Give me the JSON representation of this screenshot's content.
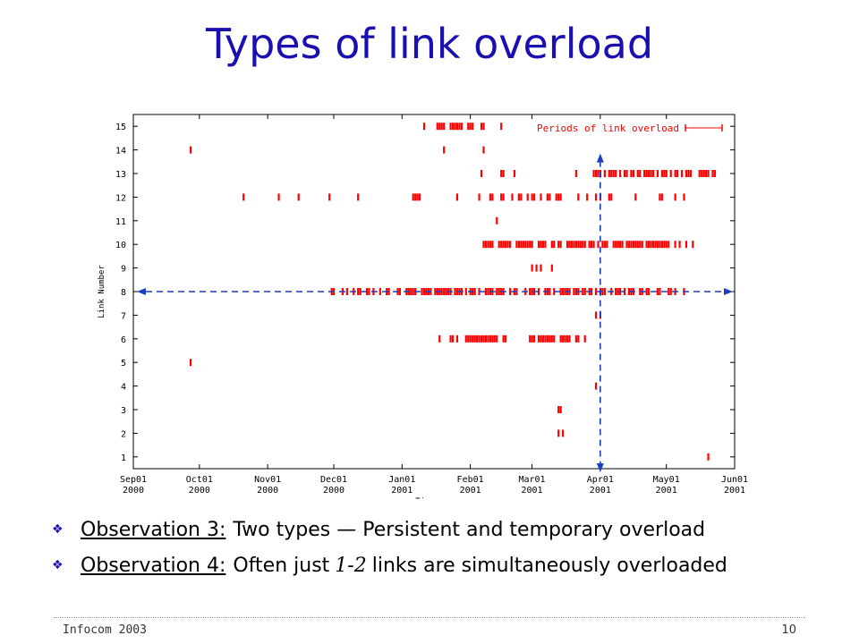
{
  "slide": {
    "title": "Types of link overload",
    "footer_left": "Infocom 2003",
    "page_number": "10"
  },
  "bullets": [
    {
      "label": "Observation 3:",
      "text": "Two types — Persistent and temporary overload"
    },
    {
      "label": "Observation 4:",
      "text_before": "Often just",
      "range": "1-2",
      "text_after": "links are simultaneously overloaded"
    }
  ],
  "chart_data": {
    "type": "scatter",
    "xlabel": "Time",
    "ylabel": "Link Number",
    "legend": {
      "label": "Periods of link overload",
      "position": "top-right"
    },
    "y_ticks": [
      1,
      2,
      3,
      4,
      5,
      6,
      7,
      8,
      9,
      10,
      11,
      12,
      13,
      14,
      15
    ],
    "ylim": [
      1,
      15
    ],
    "xlim": [
      "2000-09-01",
      "2001-06-01"
    ],
    "x_ticks": [
      {
        "date": "2000-09-01",
        "line1": "Sep01",
        "line2": "2000"
      },
      {
        "date": "2000-10-01",
        "line1": "Oct01",
        "line2": "2000"
      },
      {
        "date": "2000-11-01",
        "line1": "Nov01",
        "line2": "2000"
      },
      {
        "date": "2000-12-01",
        "line1": "Dec01",
        "line2": "2000"
      },
      {
        "date": "2001-01-01",
        "line1": "Jan01",
        "line2": "2001"
      },
      {
        "date": "2001-02-01",
        "line1": "Feb01",
        "line2": "2001"
      },
      {
        "date": "2001-03-01",
        "line1": "Mar01",
        "line2": "2001"
      },
      {
        "date": "2001-04-01",
        "line1": "Apr01",
        "line2": "2001"
      },
      {
        "date": "2001-05-01",
        "line1": "May01",
        "line2": "2001"
      },
      {
        "date": "2001-06-01",
        "line1": "Jun01",
        "line2": "2001"
      }
    ],
    "grid": false,
    "marker_color": "#ff0000",
    "arrow_color": "#1a3fc0",
    "series": [
      {
        "link": 15,
        "dates": [
          "2001-01-11",
          "2001-01-17",
          "2001-01-18",
          "2001-01-19",
          "2001-01-20",
          "2001-01-23",
          "2001-01-24",
          "2001-01-25",
          "2001-01-26",
          "2001-01-27",
          "2001-01-28",
          "2001-01-31",
          "2001-02-01",
          "2001-02-02",
          "2001-02-06",
          "2001-02-07",
          "2001-02-15"
        ]
      },
      {
        "link": 14,
        "dates": [
          "2000-09-27",
          "2001-01-20",
          "2001-02-07"
        ]
      },
      {
        "link": 13,
        "dates": [
          "2001-02-06",
          "2001-02-15",
          "2001-02-16",
          "2001-02-21",
          "2001-03-21",
          "2001-03-29",
          "2001-03-30",
          "2001-03-31",
          "2001-04-01",
          "2001-04-03",
          "2001-04-05",
          "2001-04-06",
          "2001-04-07",
          "2001-04-08",
          "2001-04-10",
          "2001-04-12",
          "2001-04-13",
          "2001-04-15",
          "2001-04-16",
          "2001-04-18",
          "2001-04-19",
          "2001-04-21",
          "2001-04-22",
          "2001-04-23",
          "2001-04-24",
          "2001-04-25",
          "2001-04-27",
          "2001-04-29",
          "2001-04-30",
          "2001-05-01",
          "2001-05-03",
          "2001-05-05",
          "2001-05-06",
          "2001-05-08",
          "2001-05-10",
          "2001-05-11",
          "2001-05-12",
          "2001-05-16",
          "2001-05-17",
          "2001-05-18",
          "2001-05-19",
          "2001-05-20",
          "2001-05-22",
          "2001-05-23"
        ]
      },
      {
        "link": 12,
        "dates": [
          "2000-10-21",
          "2000-11-06",
          "2000-11-15",
          "2000-11-29",
          "2000-12-12",
          "2001-01-06",
          "2001-01-07",
          "2001-01-08",
          "2001-01-09",
          "2001-01-26",
          "2001-02-05",
          "2001-02-10",
          "2001-02-11",
          "2001-02-15",
          "2001-02-16",
          "2001-02-20",
          "2001-02-23",
          "2001-02-24",
          "2001-02-27",
          "2001-03-01",
          "2001-03-02",
          "2001-03-05",
          "2001-03-08",
          "2001-03-09",
          "2001-03-12",
          "2001-03-13",
          "2001-03-14",
          "2001-03-22",
          "2001-03-26",
          "2001-03-30",
          "2001-04-01",
          "2001-04-05",
          "2001-04-06",
          "2001-04-17",
          "2001-04-28",
          "2001-04-29",
          "2001-05-05",
          "2001-05-09"
        ]
      },
      {
        "link": 11,
        "dates": [
          "2001-02-13"
        ]
      },
      {
        "link": 10,
        "dates": [
          "2001-02-07",
          "2001-02-08",
          "2001-02-09",
          "2001-02-10",
          "2001-02-11",
          "2001-02-14",
          "2001-02-15",
          "2001-02-16",
          "2001-02-17",
          "2001-02-18",
          "2001-02-19",
          "2001-02-22",
          "2001-02-23",
          "2001-02-24",
          "2001-02-25",
          "2001-02-26",
          "2001-02-27",
          "2001-02-28",
          "2001-03-01",
          "2001-03-04",
          "2001-03-05",
          "2001-03-06",
          "2001-03-07",
          "2001-03-10",
          "2001-03-11",
          "2001-03-13",
          "2001-03-14",
          "2001-03-17",
          "2001-03-18",
          "2001-03-19",
          "2001-03-20",
          "2001-03-21",
          "2001-03-22",
          "2001-03-23",
          "2001-03-24",
          "2001-03-25",
          "2001-03-27",
          "2001-03-28",
          "2001-03-29",
          "2001-03-31",
          "2001-04-02",
          "2001-04-03",
          "2001-04-04",
          "2001-04-07",
          "2001-04-08",
          "2001-04-09",
          "2001-04-10",
          "2001-04-11",
          "2001-04-13",
          "2001-04-14",
          "2001-04-15",
          "2001-04-16",
          "2001-04-17",
          "2001-04-18",
          "2001-04-19",
          "2001-04-20",
          "2001-04-22",
          "2001-04-23",
          "2001-04-24",
          "2001-04-25",
          "2001-04-26",
          "2001-04-27",
          "2001-04-28",
          "2001-04-29",
          "2001-04-30",
          "2001-05-01",
          "2001-05-02",
          "2001-05-05",
          "2001-05-07",
          "2001-05-10",
          "2001-05-13"
        ]
      },
      {
        "link": 9,
        "dates": [
          "2001-03-01",
          "2001-03-03",
          "2001-03-05",
          "2001-03-10"
        ]
      },
      {
        "link": 8,
        "dates": [
          "2000-11-30",
          "2000-12-01",
          "2000-12-05",
          "2000-12-07",
          "2000-12-10",
          "2000-12-12",
          "2000-12-13",
          "2000-12-16",
          "2000-12-17",
          "2000-12-19",
          "2000-12-22",
          "2000-12-25",
          "2000-12-26",
          "2000-12-30",
          "2000-12-31",
          "2001-01-03",
          "2001-01-04",
          "2001-01-05",
          "2001-01-06",
          "2001-01-07",
          "2001-01-10",
          "2001-01-11",
          "2001-01-12",
          "2001-01-13",
          "2001-01-14",
          "2001-01-16",
          "2001-01-17",
          "2001-01-18",
          "2001-01-19",
          "2001-01-20",
          "2001-01-21",
          "2001-01-22",
          "2001-01-23",
          "2001-01-25",
          "2001-01-26",
          "2001-01-27",
          "2001-01-28",
          "2001-01-30",
          "2001-02-01",
          "2001-02-02",
          "2001-02-03",
          "2001-02-05",
          "2001-02-08",
          "2001-02-09",
          "2001-02-10",
          "2001-02-11",
          "2001-02-13",
          "2001-02-14",
          "2001-02-15",
          "2001-02-16",
          "2001-02-19",
          "2001-02-21",
          "2001-02-22",
          "2001-02-26",
          "2001-02-28",
          "2001-03-01",
          "2001-03-02",
          "2001-03-04",
          "2001-03-07",
          "2001-03-08",
          "2001-03-09",
          "2001-03-11",
          "2001-03-14",
          "2001-03-15",
          "2001-03-16",
          "2001-03-17",
          "2001-03-18",
          "2001-03-20",
          "2001-03-21",
          "2001-03-22",
          "2001-03-24",
          "2001-03-25",
          "2001-03-27",
          "2001-03-28",
          "2001-03-30",
          "2001-04-01",
          "2001-04-02",
          "2001-04-03",
          "2001-04-06",
          "2001-04-08",
          "2001-04-09",
          "2001-04-10",
          "2001-04-12",
          "2001-04-14",
          "2001-04-15",
          "2001-04-16",
          "2001-04-19",
          "2001-04-20",
          "2001-04-22",
          "2001-04-23",
          "2001-04-27",
          "2001-04-28",
          "2001-05-02",
          "2001-05-03",
          "2001-05-05",
          "2001-05-09"
        ]
      },
      {
        "link": 7,
        "dates": [
          "2001-03-30",
          "2001-04-01"
        ]
      },
      {
        "link": 6,
        "dates": [
          "2001-01-18",
          "2001-01-23",
          "2001-01-24",
          "2001-01-26",
          "2001-01-30",
          "2001-01-31",
          "2001-02-01",
          "2001-02-02",
          "2001-02-03",
          "2001-02-04",
          "2001-02-05",
          "2001-02-06",
          "2001-02-07",
          "2001-02-08",
          "2001-02-09",
          "2001-02-10",
          "2001-02-11",
          "2001-02-12",
          "2001-02-13",
          "2001-02-16",
          "2001-02-17",
          "2001-02-28",
          "2001-03-01",
          "2001-03-02",
          "2001-03-04",
          "2001-03-05",
          "2001-03-06",
          "2001-03-07",
          "2001-03-08",
          "2001-03-09",
          "2001-03-10",
          "2001-03-11",
          "2001-03-14",
          "2001-03-15",
          "2001-03-16",
          "2001-03-17",
          "2001-03-18",
          "2001-03-21",
          "2001-03-22",
          "2001-03-25"
        ]
      },
      {
        "link": 5,
        "dates": [
          "2000-09-27"
        ]
      },
      {
        "link": 4,
        "dates": [
          "2001-03-30"
        ]
      },
      {
        "link": 3,
        "dates": [
          "2001-03-13",
          "2001-03-14"
        ]
      },
      {
        "link": 2,
        "dates": [
          "2001-03-13",
          "2001-03-15"
        ]
      },
      {
        "link": 1,
        "dates": [
          "2001-05-20"
        ]
      }
    ]
  }
}
